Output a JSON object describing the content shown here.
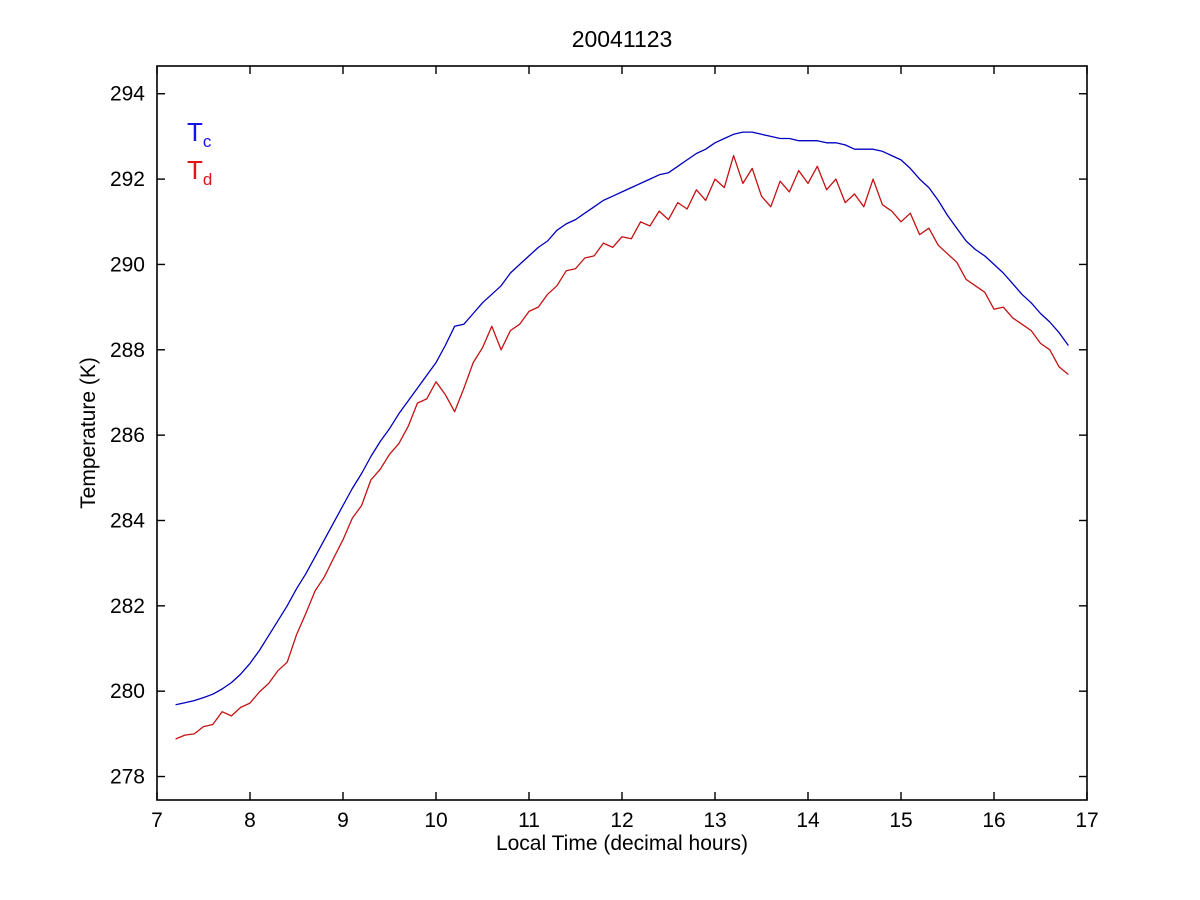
{
  "title": "20041123",
  "axes": {
    "xlabel": "Local Time (decimal hours)",
    "ylabel": "Temperature (K)",
    "x_ticks": [
      7,
      8,
      9,
      10,
      11,
      12,
      13,
      14,
      15,
      16,
      17
    ],
    "y_ticks": [
      278,
      280,
      282,
      284,
      286,
      288,
      290,
      292,
      294
    ],
    "xlim": [
      7,
      17
    ],
    "ylim": [
      277.45,
      294.65
    ]
  },
  "legend": [
    {
      "label": "T",
      "sub": "c",
      "color": "#1414E6"
    },
    {
      "label": "T",
      "sub": "d",
      "color": "#E01414"
    }
  ],
  "colors": {
    "tc_line": "#0000BE",
    "td_line": "#C41212",
    "axis": "#000000",
    "background": "#ffffff"
  },
  "chart_data": {
    "type": "line",
    "title": "20041123",
    "xlabel": "Local Time (decimal hours)",
    "ylabel": "Temperature (K)",
    "xlim": [
      7,
      17
    ],
    "ylim": [
      277.45,
      294.65
    ],
    "grid": false,
    "legend_position": "upper-left-inside",
    "x": [
      7.2,
      7.3,
      7.4,
      7.5,
      7.6,
      7.7,
      7.8,
      7.9,
      8.0,
      8.1,
      8.2,
      8.3,
      8.4,
      8.5,
      8.6,
      8.7,
      8.8,
      8.9,
      9.0,
      9.1,
      9.2,
      9.3,
      9.4,
      9.5,
      9.6,
      9.7,
      9.8,
      9.9,
      10.0,
      10.1,
      10.2,
      10.3,
      10.4,
      10.5,
      10.6,
      10.7,
      10.8,
      10.9,
      11.0,
      11.1,
      11.2,
      11.3,
      11.4,
      11.5,
      11.6,
      11.7,
      11.8,
      11.9,
      12.0,
      12.1,
      12.2,
      12.3,
      12.4,
      12.5,
      12.6,
      12.7,
      12.8,
      12.9,
      13.0,
      13.1,
      13.2,
      13.3,
      13.4,
      13.5,
      13.6,
      13.7,
      13.8,
      13.9,
      14.0,
      14.1,
      14.2,
      14.3,
      14.4,
      14.5,
      14.6,
      14.7,
      14.8,
      14.9,
      15.0,
      15.1,
      15.2,
      15.3,
      15.4,
      15.5,
      15.6,
      15.7,
      15.8,
      15.9,
      16.0,
      16.1,
      16.2,
      16.3,
      16.4,
      16.5,
      16.6,
      16.7,
      16.8
    ],
    "series": [
      {
        "name": "Tc",
        "color": "#0000BE",
        "values": [
          279.68,
          279.73,
          279.78,
          279.85,
          279.93,
          280.05,
          280.2,
          280.4,
          280.65,
          280.95,
          281.3,
          281.65,
          282.0,
          282.4,
          282.75,
          283.15,
          283.55,
          283.95,
          284.35,
          284.75,
          285.1,
          285.5,
          285.85,
          286.15,
          286.5,
          286.8,
          287.1,
          287.4,
          287.7,
          288.1,
          288.55,
          288.6,
          288.85,
          289.1,
          289.3,
          289.5,
          289.8,
          290.0,
          290.2,
          290.4,
          290.55,
          290.8,
          290.95,
          291.05,
          291.2,
          291.35,
          291.5,
          291.6,
          291.7,
          291.8,
          291.9,
          292.0,
          292.1,
          292.15,
          292.3,
          292.45,
          292.6,
          292.7,
          292.85,
          292.95,
          293.05,
          293.1,
          293.1,
          293.05,
          293.0,
          292.95,
          292.95,
          292.9,
          292.9,
          292.9,
          292.85,
          292.85,
          292.8,
          292.7,
          292.7,
          292.7,
          292.65,
          292.55,
          292.45,
          292.25,
          292.0,
          291.8,
          291.5,
          291.15,
          290.85,
          290.55,
          290.35,
          290.2,
          290.0,
          289.8,
          289.55,
          289.3,
          289.1,
          288.85,
          288.65,
          288.4,
          288.1
        ]
      },
      {
        "name": "Td",
        "color": "#C41212",
        "values": [
          278.88,
          278.97,
          279.0,
          279.17,
          279.22,
          279.52,
          279.42,
          279.62,
          279.72,
          279.98,
          280.18,
          280.48,
          280.68,
          281.32,
          281.82,
          282.35,
          282.68,
          283.12,
          283.55,
          284.05,
          284.35,
          284.95,
          285.2,
          285.55,
          285.8,
          286.2,
          286.75,
          286.85,
          287.25,
          286.95,
          286.55,
          287.1,
          287.7,
          288.05,
          288.55,
          288.0,
          288.45,
          288.6,
          288.9,
          289.0,
          289.3,
          289.5,
          289.85,
          289.9,
          290.15,
          290.2,
          290.5,
          290.4,
          290.65,
          290.6,
          291.0,
          290.9,
          291.25,
          291.05,
          291.45,
          291.3,
          291.75,
          291.5,
          292.0,
          291.8,
          292.55,
          291.9,
          292.25,
          291.6,
          291.35,
          291.95,
          291.7,
          292.2,
          291.9,
          292.3,
          291.75,
          292.0,
          291.45,
          291.65,
          291.35,
          292.0,
          291.4,
          291.25,
          291.0,
          291.2,
          290.7,
          290.85,
          290.45,
          290.25,
          290.05,
          289.65,
          289.5,
          289.35,
          288.95,
          289.0,
          288.75,
          288.6,
          288.45,
          288.15,
          288.0,
          287.6,
          287.42
        ]
      }
    ]
  }
}
